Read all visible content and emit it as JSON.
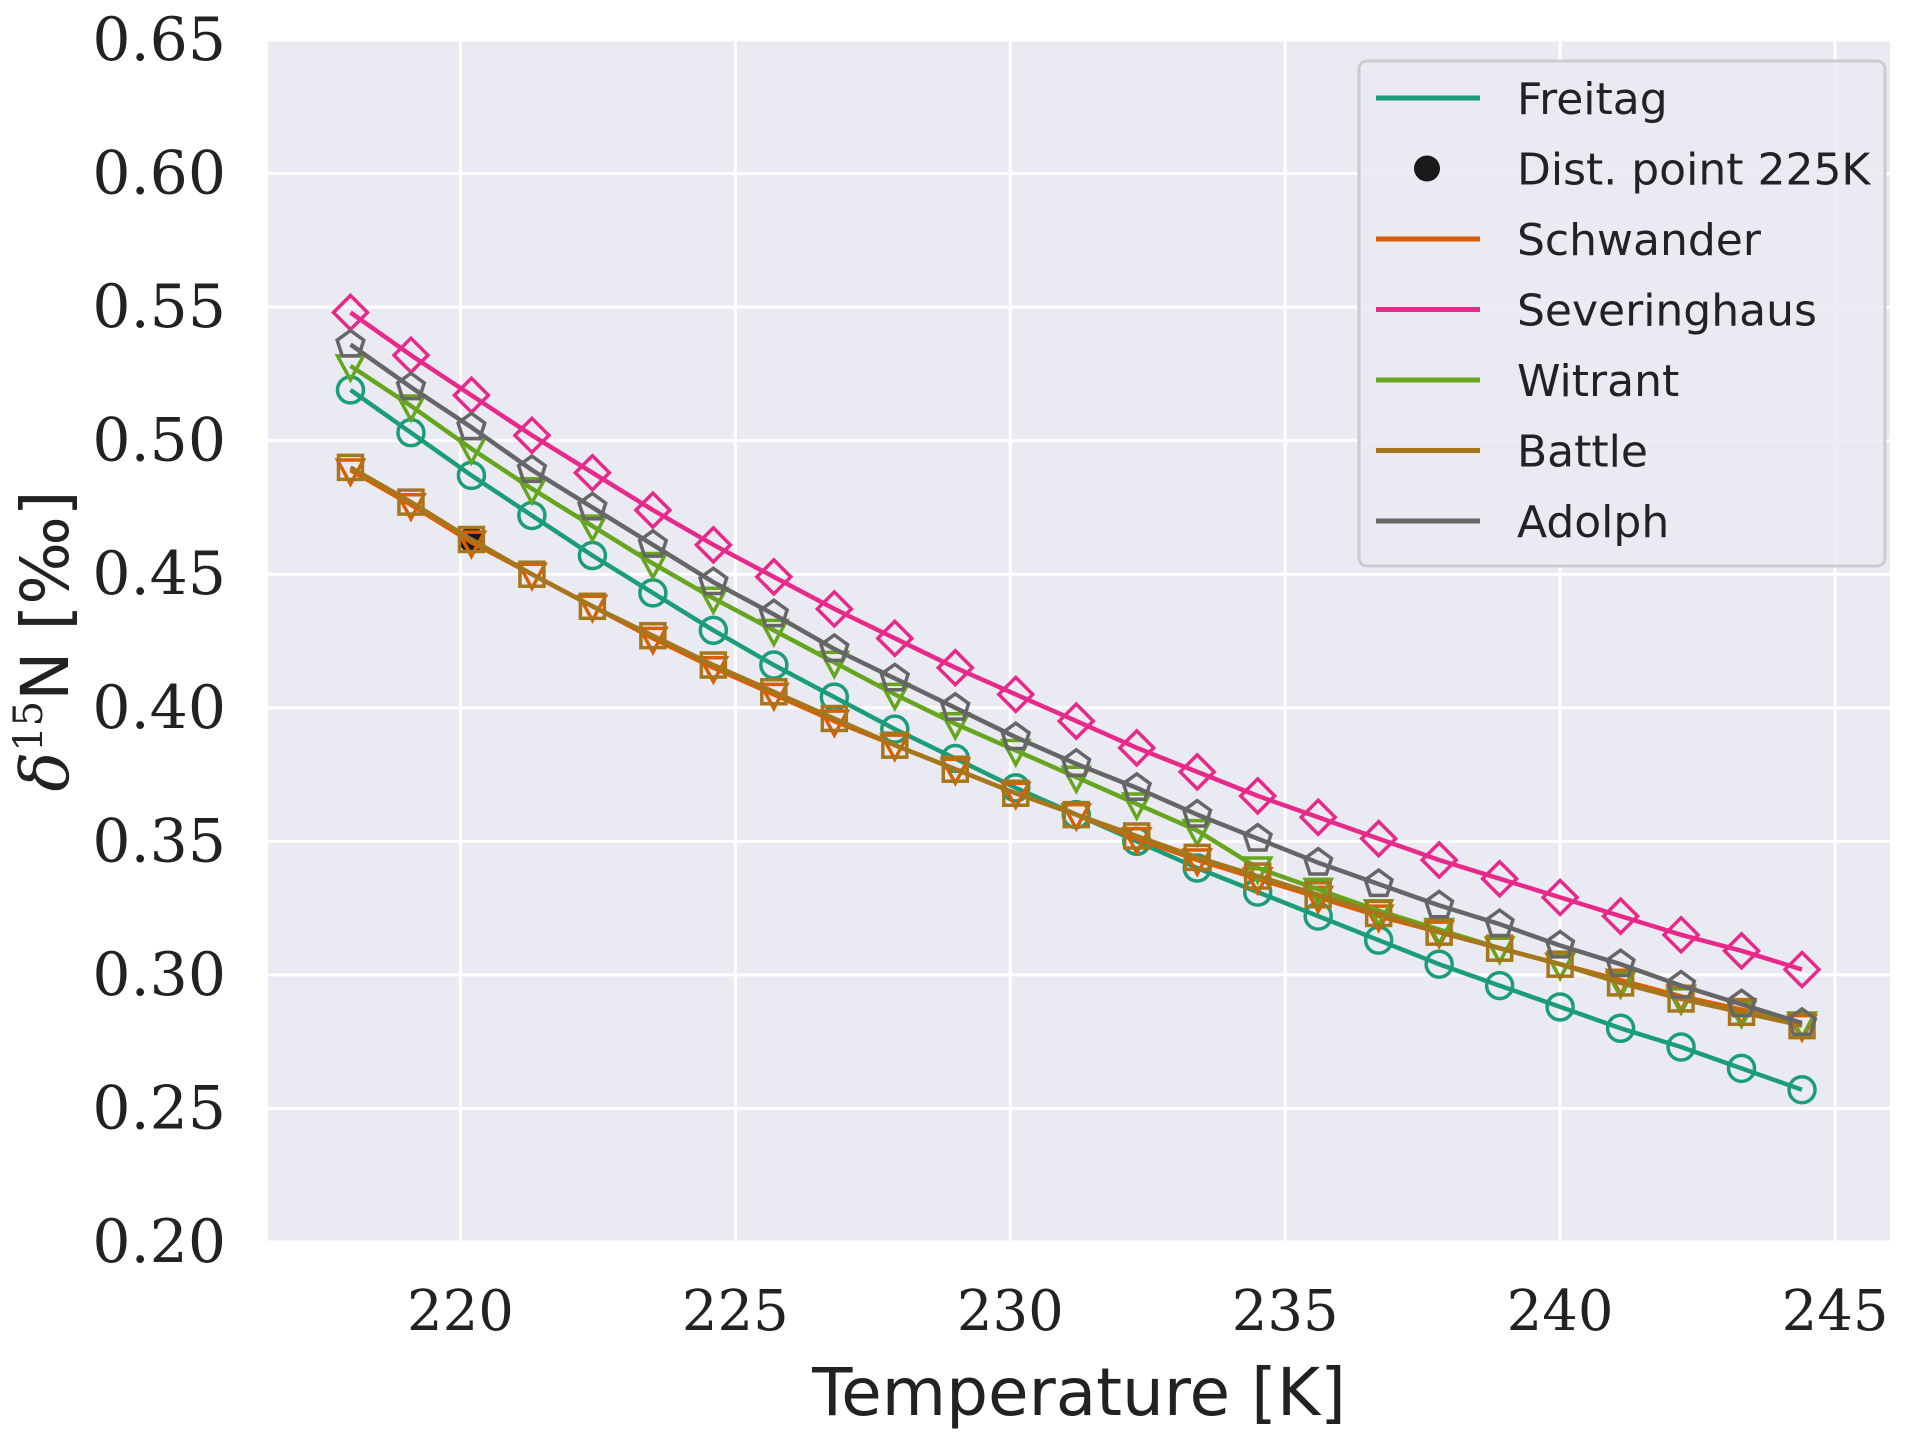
{
  "chart_data": {
    "type": "line",
    "xlabel": "Temperature [K]",
    "ylabel_main": "δ",
    "ylabel_sup": "15",
    "ylabel_rest": "N [‰]",
    "xlim": [
      216.5,
      246
    ],
    "ylim": [
      0.2,
      0.65
    ],
    "x_ticks": [
      220,
      225,
      230,
      235,
      240,
      245
    ],
    "y_ticks": [
      0.2,
      0.25,
      0.3,
      0.35,
      0.4,
      0.45,
      0.5,
      0.55,
      0.6,
      0.65
    ],
    "x_tick_labels": [
      "220",
      "225",
      "230",
      "235",
      "240",
      "245"
    ],
    "y_tick_labels": [
      "0.20",
      "0.25",
      "0.30",
      "0.35",
      "0.40",
      "0.45",
      "0.50",
      "0.55",
      "0.60",
      "0.65"
    ],
    "grid": true,
    "legend_position": "top-right",
    "x": [
      218.0,
      219.1,
      220.2,
      221.3,
      222.4,
      223.5,
      224.6,
      225.7,
      226.8,
      227.9,
      229.0,
      230.1,
      231.2,
      232.3,
      233.4,
      234.5,
      235.6,
      236.7,
      237.8,
      238.9,
      240.0,
      241.1,
      242.2,
      243.3,
      244.4
    ],
    "series": [
      {
        "name": "Freitag",
        "color": "#1b9e77",
        "marker": "circle",
        "values": [
          0.519,
          0.503,
          0.487,
          0.472,
          0.457,
          0.443,
          0.429,
          0.416,
          0.404,
          0.392,
          0.381,
          0.37,
          0.36,
          0.35,
          0.34,
          0.331,
          0.322,
          0.313,
          0.304,
          0.296,
          0.288,
          0.28,
          0.273,
          0.265,
          0.257
        ]
      },
      {
        "name": "Dist. point 225K",
        "color": "#1a1a1a",
        "marker": "dot",
        "points": [
          {
            "x": 220.2,
            "y": 0.463
          }
        ]
      },
      {
        "name": "Schwander",
        "color": "#d95f02",
        "marker": "triangle-down",
        "values": [
          0.489,
          0.476,
          0.462,
          0.45,
          0.438,
          0.426,
          0.415,
          0.405,
          0.395,
          0.386,
          0.377,
          0.368,
          0.36,
          0.351,
          0.343,
          0.336,
          0.329,
          0.322,
          0.316,
          0.31,
          0.304,
          0.298,
          0.292,
          0.287,
          0.281
        ]
      },
      {
        "name": "Severinghaus",
        "color": "#e7298a",
        "marker": "diamond",
        "values": [
          0.548,
          0.532,
          0.517,
          0.502,
          0.488,
          0.474,
          0.461,
          0.449,
          0.437,
          0.426,
          0.415,
          0.405,
          0.395,
          0.385,
          0.376,
          0.367,
          0.359,
          0.351,
          0.343,
          0.336,
          0.329,
          0.322,
          0.315,
          0.309,
          0.302
        ]
      },
      {
        "name": "Witrant",
        "color": "#66a61e",
        "marker": "triangle-down",
        "values": [
          0.528,
          0.513,
          0.497,
          0.482,
          0.468,
          0.454,
          0.441,
          0.429,
          0.417,
          0.405,
          0.394,
          0.384,
          0.374,
          0.364,
          0.354,
          0.34,
          0.332,
          0.324,
          0.317,
          0.31,
          0.304,
          0.297,
          0.291,
          0.286,
          0.282
        ]
      },
      {
        "name": "Battle",
        "color": "#a6761d",
        "marker": "square",
        "values": [
          0.49,
          0.477,
          0.463,
          0.45,
          0.438,
          0.427,
          0.416,
          0.406,
          0.396,
          0.386,
          0.377,
          0.368,
          0.36,
          0.352,
          0.344,
          0.337,
          0.33,
          0.323,
          0.316,
          0.31,
          0.304,
          0.297,
          0.291,
          0.286,
          0.281
        ]
      },
      {
        "name": "Adolph",
        "color": "#666666",
        "marker": "pentagon",
        "values": [
          0.536,
          0.52,
          0.505,
          0.489,
          0.475,
          0.461,
          0.447,
          0.435,
          0.422,
          0.411,
          0.4,
          0.389,
          0.379,
          0.37,
          0.36,
          0.351,
          0.342,
          0.334,
          0.326,
          0.319,
          0.311,
          0.304,
          0.296,
          0.289,
          0.282
        ]
      }
    ],
    "colors": {
      "plot_background": "#eaeaf2",
      "grid": "#ffffff",
      "legend_border": "#cccccc"
    }
  }
}
